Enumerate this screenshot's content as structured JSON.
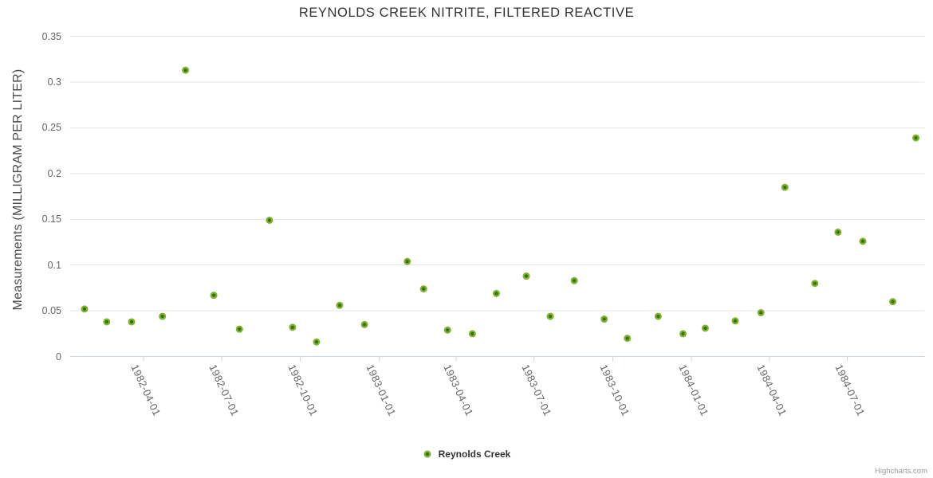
{
  "credits": "Highcharts.com",
  "colors": {
    "background": "#ffffff",
    "grid": "#e6e6e6",
    "axis_line": "#ccd6eb",
    "marker_fill": "#7cb42d",
    "marker_core": "#3a6d05",
    "title_text": "#333333",
    "axis_label_text": "#666666",
    "axis_title_text": "#4d4d4d",
    "legend_text": "#333333",
    "credits_text": "#999999"
  },
  "chart_data": {
    "type": "scatter",
    "title": "REYNOLDS CREEK NITRITE, FILTERED REACTIVE",
    "xlabel": "",
    "ylabel": "Measurements (MILLIGRAM PER LITER)",
    "ylim": [
      0,
      0.35
    ],
    "grid": true,
    "legend_position": "bottom-center",
    "marker_radius": 4.5,
    "y_ticks": [
      {
        "v": 0,
        "label": "0"
      },
      {
        "v": 0.05,
        "label": "0.05"
      },
      {
        "v": 0.1,
        "label": "0.1"
      },
      {
        "v": 0.15,
        "label": "0.15"
      },
      {
        "v": 0.2,
        "label": "0.2"
      },
      {
        "v": 0.25,
        "label": "0.25"
      },
      {
        "v": 0.3,
        "label": "0.3"
      },
      {
        "v": 0.35,
        "label": "0.35"
      }
    ],
    "x_ticks": [
      "1982-04-01",
      "1982-07-01",
      "1982-10-01",
      "1983-01-01",
      "1983-04-01",
      "1983-07-01",
      "1983-10-01",
      "1984-01-01",
      "1984-04-01",
      "1984-07-01"
    ],
    "x_tick_rotation": 65,
    "x_range": [
      "1982-01-05",
      "1984-09-29"
    ],
    "series": [
      {
        "name": "Reynolds Creek",
        "points": [
          {
            "date": "1982-01-22",
            "value": 0.052
          },
          {
            "date": "1982-02-17",
            "value": 0.038
          },
          {
            "date": "1982-03-18",
            "value": 0.038
          },
          {
            "date": "1982-04-23",
            "value": 0.044
          },
          {
            "date": "1982-05-20",
            "value": 0.313
          },
          {
            "date": "1982-06-22",
            "value": 0.067
          },
          {
            "date": "1982-07-22",
            "value": 0.03
          },
          {
            "date": "1982-08-26",
            "value": 0.149
          },
          {
            "date": "1982-09-22",
            "value": 0.032
          },
          {
            "date": "1982-10-20",
            "value": 0.016
          },
          {
            "date": "1982-11-16",
            "value": 0.056
          },
          {
            "date": "1982-12-15",
            "value": 0.035
          },
          {
            "date": "1983-02-03",
            "value": 0.104
          },
          {
            "date": "1983-02-22",
            "value": 0.074
          },
          {
            "date": "1983-03-22",
            "value": 0.029
          },
          {
            "date": "1983-04-20",
            "value": 0.025
          },
          {
            "date": "1983-05-18",
            "value": 0.069
          },
          {
            "date": "1983-06-22",
            "value": 0.088
          },
          {
            "date": "1983-07-20",
            "value": 0.044
          },
          {
            "date": "1983-08-17",
            "value": 0.083
          },
          {
            "date": "1983-09-21",
            "value": 0.041
          },
          {
            "date": "1983-10-18",
            "value": 0.02
          },
          {
            "date": "1983-11-23",
            "value": 0.044
          },
          {
            "date": "1983-12-22",
            "value": 0.025
          },
          {
            "date": "1984-01-17",
            "value": 0.031
          },
          {
            "date": "1984-02-21",
            "value": 0.039
          },
          {
            "date": "1984-03-22",
            "value": 0.048
          },
          {
            "date": "1984-04-19",
            "value": 0.185
          },
          {
            "date": "1984-05-24",
            "value": 0.08
          },
          {
            "date": "1984-06-20",
            "value": 0.136
          },
          {
            "date": "1984-07-19",
            "value": 0.126
          },
          {
            "date": "1984-08-23",
            "value": 0.06
          },
          {
            "date": "1984-09-19",
            "value": 0.239
          }
        ]
      }
    ]
  }
}
